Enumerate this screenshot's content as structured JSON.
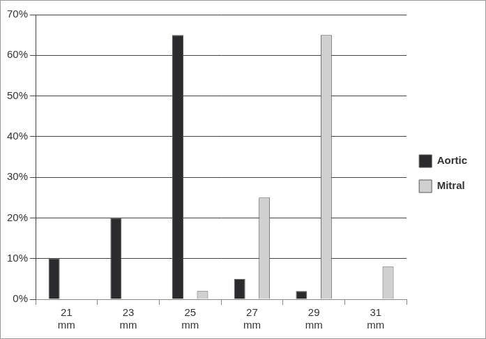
{
  "chart_data": {
    "type": "bar",
    "categories": [
      "21 mm",
      "23 mm",
      "25 mm",
      "27 mm",
      "29 mm",
      "31 mm"
    ],
    "series": [
      {
        "name": "Aortic",
        "color": "#2b2b2d",
        "values": [
          10,
          20,
          65,
          5,
          2,
          0
        ]
      },
      {
        "name": "Mitral",
        "color": "#d0d0d0",
        "values": [
          0,
          0,
          2,
          25,
          65,
          8
        ]
      }
    ],
    "ylim": [
      0,
      70
    ],
    "yticks": [
      {
        "value": 0,
        "label": "0%"
      },
      {
        "value": 10,
        "label": "10%"
      },
      {
        "value": 20,
        "label": "20%"
      },
      {
        "value": 30,
        "label": "30%"
      },
      {
        "value": 40,
        "label": "40%"
      },
      {
        "value": 50,
        "label": "50%"
      },
      {
        "value": 60,
        "label": "60%"
      },
      {
        "value": 70,
        "label": "70%"
      }
    ],
    "grid": true,
    "legend": "right"
  }
}
